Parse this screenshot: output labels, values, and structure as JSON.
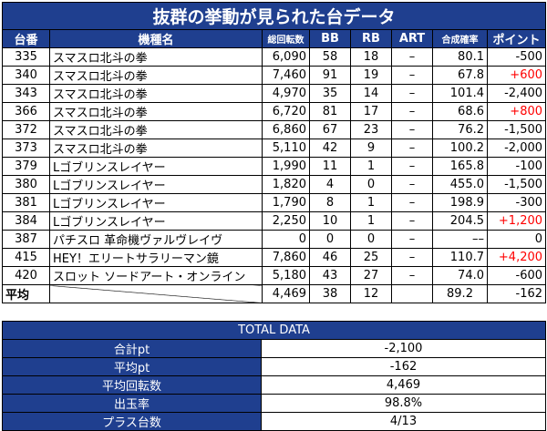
{
  "title": "抜群の挙動が見られた台データ",
  "headers": [
    "台番",
    "機種名",
    "総回転数",
    "BB",
    "RB",
    "ART",
    "合成確率",
    "ポイント"
  ],
  "rows": [
    {
      "no": "335",
      "name": "スマスロ北斗の拳",
      "spins": "6,090",
      "bb": "58",
      "rb": "18",
      "art": "–",
      "prob": "80.1",
      "point": "-500",
      "plus": false
    },
    {
      "no": "340",
      "name": "スマスロ北斗の拳",
      "spins": "7,460",
      "bb": "91",
      "rb": "19",
      "art": "–",
      "prob": "67.8",
      "point": "+600",
      "plus": true
    },
    {
      "no": "343",
      "name": "スマスロ北斗の拳",
      "spins": "4,970",
      "bb": "35",
      "rb": "14",
      "art": "–",
      "prob": "101.4",
      "point": "-2,400",
      "plus": false
    },
    {
      "no": "366",
      "name": "スマスロ北斗の拳",
      "spins": "6,720",
      "bb": "81",
      "rb": "17",
      "art": "–",
      "prob": "68.6",
      "point": "+800",
      "plus": true
    },
    {
      "no": "372",
      "name": "スマスロ北斗の拳",
      "spins": "6,860",
      "bb": "67",
      "rb": "23",
      "art": "–",
      "prob": "76.2",
      "point": "-1,500",
      "plus": false
    },
    {
      "no": "373",
      "name": "スマスロ北斗の拳",
      "spins": "5,110",
      "bb": "42",
      "rb": "9",
      "art": "–",
      "prob": "100.2",
      "point": "-2,000",
      "plus": false
    },
    {
      "no": "379",
      "name": "Lゴブリンスレイヤー",
      "spins": "1,990",
      "bb": "11",
      "rb": "1",
      "art": "–",
      "prob": "165.8",
      "point": "-100",
      "plus": false
    },
    {
      "no": "380",
      "name": "Lゴブリンスレイヤー",
      "spins": "1,820",
      "bb": "4",
      "rb": "0",
      "art": "–",
      "prob": "455.0",
      "point": "-1,500",
      "plus": false
    },
    {
      "no": "381",
      "name": "Lゴブリンスレイヤー",
      "spins": "1,790",
      "bb": "8",
      "rb": "1",
      "art": "–",
      "prob": "198.9",
      "point": "-300",
      "plus": false
    },
    {
      "no": "384",
      "name": "Lゴブリンスレイヤー",
      "spins": "2,250",
      "bb": "10",
      "rb": "1",
      "art": "–",
      "prob": "204.5",
      "point": "+1,200",
      "plus": true
    },
    {
      "no": "387",
      "name": "パチスロ 革命機ヴァルヴレイヴ",
      "spins": "0",
      "bb": "0",
      "rb": "0",
      "art": "–",
      "prob": "––",
      "point": "0",
      "plus": false
    },
    {
      "no": "415",
      "name": "HEY！エリートサラリーマン鏡",
      "spins": "7,860",
      "bb": "46",
      "rb": "25",
      "art": "–",
      "prob": "110.7",
      "point": "+4,200",
      "plus": true
    },
    {
      "no": "420",
      "name": "スロット ソードアート・オンライン",
      "spins": "5,180",
      "bb": "43",
      "rb": "27",
      "art": "–",
      "prob": "74.0",
      "point": "-600",
      "plus": false
    }
  ],
  "average": {
    "label": "平均",
    "spins": "4,469",
    "bb": "38",
    "rb": "12",
    "art": "",
    "prob": "89.2",
    "point": "-162"
  },
  "colors": {
    "header_bg": "#1f3f8f",
    "header_text": "#ffffff",
    "plus_point": "#ff0000"
  },
  "total": {
    "title": "TOTAL DATA",
    "rows": [
      {
        "label": "合計pt",
        "value": "-2,100"
      },
      {
        "label": "平均pt",
        "value": "-162"
      },
      {
        "label": "平均回転数",
        "value": "4,469"
      },
      {
        "label": "出玉率",
        "value": "98.8%"
      },
      {
        "label": "プラス台数",
        "value": "4/13"
      }
    ]
  }
}
